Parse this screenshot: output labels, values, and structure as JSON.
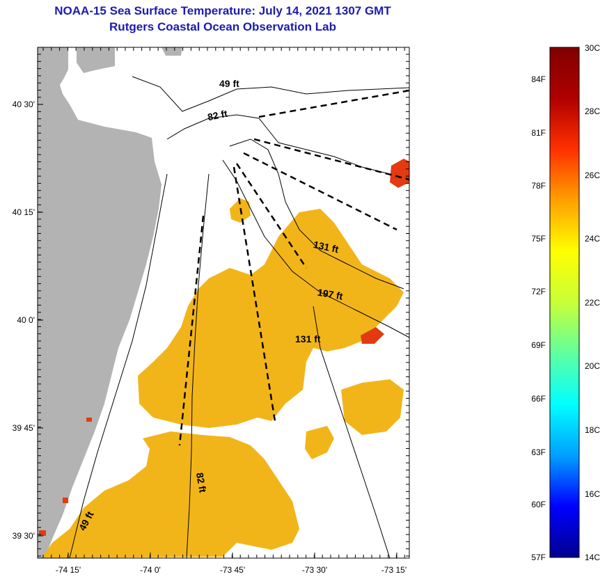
{
  "title": {
    "line1": "NOAA-15 Sea Surface Temperature:  July 14, 2021 1307 GMT",
    "line2": "Rutgers Coastal Ocean Observation Lab"
  },
  "map": {
    "lat_range": [
      "39 27'",
      "40 37'"
    ],
    "lon_range": [
      "-74 21'",
      "-73 14'"
    ],
    "lat_ticks": [
      "40 30'",
      "40 15'",
      "40 0'",
      "39 45'",
      "39 30'"
    ],
    "lon_ticks": [
      "-74 15'",
      "-74 0'",
      "-73 45'",
      "-73 30'",
      "-73 15'"
    ],
    "contour_labels": [
      "49 ft",
      "82 ft",
      "131 ft",
      "197 ft",
      "131 ft",
      "82 ft",
      "49 ft"
    ],
    "colors": {
      "land": "#b3b3b3",
      "warm_sst": "#f2b519",
      "hot_sst": "#e33a12",
      "cloud_or_missing": "#ffffff",
      "frame": "#000000"
    }
  },
  "colorbar": {
    "fahrenheit_labels": [
      "84F",
      "81F",
      "78F",
      "75F",
      "72F",
      "69F",
      "66F",
      "63F",
      "60F",
      "57F"
    ],
    "celsius_labels": [
      "30C",
      "28C",
      "26C",
      "24C",
      "22C",
      "20C",
      "18C",
      "16C",
      "14C"
    ],
    "colors": [
      "#00008f",
      "#0000ff",
      "#00a0ff",
      "#00ffff",
      "#60ff9f",
      "#c8ff37",
      "#ffff00",
      "#ffa000",
      "#ff3000",
      "#b00000",
      "#800000"
    ]
  }
}
